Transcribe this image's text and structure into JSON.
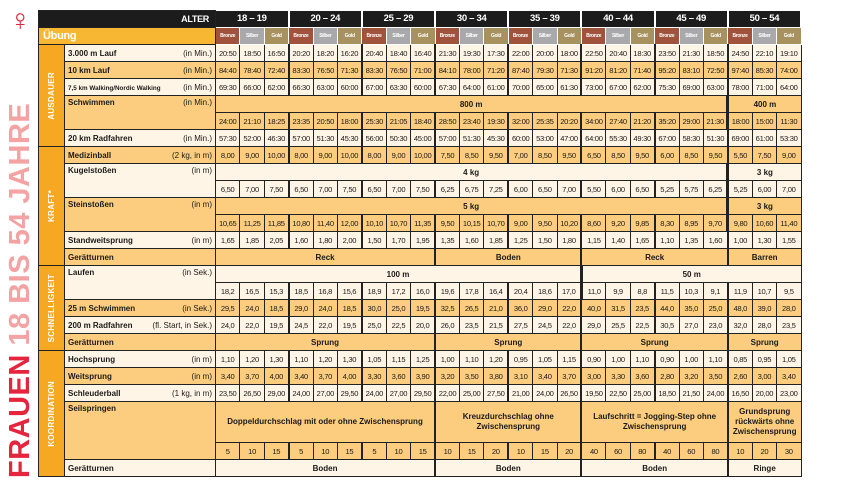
{
  "title": {
    "part1": "FRAUEN",
    "part2": "18 BIS 54 JAHRE",
    "symbol": "♀",
    "colors": {
      "red": "#e4253d",
      "pink": "#f3a3a3"
    }
  },
  "header": {
    "alter_label": "ALTER",
    "uebung_label": "Übung",
    "age_groups": [
      "18 – 19",
      "20 – 24",
      "25 – 29",
      "30 – 34",
      "35 – 39",
      "40 – 44",
      "45 – 49",
      "50 – 54"
    ],
    "medals": [
      {
        "label": "Bronze",
        "color": "#a0523c"
      },
      {
        "label": "Silber",
        "color": "#a9a9ab"
      },
      {
        "label": "Gold",
        "color": "#a7915f"
      }
    ]
  },
  "colors": {
    "orange": "#fccd7e",
    "cream": "#fff5e6",
    "category": "#f7a823",
    "header": "#1c1c1c"
  },
  "sections": [
    {
      "category": "AUSDAUER",
      "rows": [
        {
          "label": "3.000 m Lauf",
          "unit": "(in Min.)",
          "bg": "c",
          "values": [
            "20:50",
            "18:50",
            "16:50",
            "20:20",
            "18:20",
            "16:20",
            "20:40",
            "18:40",
            "16:40",
            "21:30",
            "19:30",
            "17:30",
            "22:00",
            "20:00",
            "18:00",
            "22:50",
            "20:40",
            "18:30",
            "23:50",
            "21:30",
            "18:50",
            "24:50",
            "22:10",
            "19:10"
          ]
        },
        {
          "label": "10 km Lauf",
          "unit": "(in Min.)",
          "bg": "o",
          "values": [
            "84:40",
            "78:40",
            "72:40",
            "83:30",
            "76:50",
            "71:30",
            "83:30",
            "76:50",
            "71:00",
            "84:10",
            "78:00",
            "71:20",
            "87:40",
            "79:30",
            "71:30",
            "91:20",
            "81:20",
            "71:40",
            "95:20",
            "83:10",
            "72:50",
            "97:40",
            "85:30",
            "74:00"
          ]
        },
        {
          "label": "7,5 km Walking/Nordic Walking",
          "unit": "(in Min.)",
          "bg": "c",
          "small": true,
          "values": [
            "69:30",
            "66:00",
            "62:00",
            "66:30",
            "63:00",
            "60:00",
            "67:00",
            "63:30",
            "60:00",
            "67:30",
            "64:00",
            "61:00",
            "70:00",
            "65:00",
            "61:30",
            "73:00",
            "67:00",
            "62:00",
            "75:30",
            "69:00",
            "63:00",
            "78:00",
            "71:00",
            "64:00"
          ]
        },
        {
          "label": "Schwimmen",
          "unit": "(in Min.)",
          "bg": "o",
          "spanbg": "o",
          "spans": [
            {
              "text": "800 m",
              "cols": 21
            },
            {
              "text": "400 m",
              "cols": 3
            }
          ],
          "values": [
            "24:00",
            "21:10",
            "18:25",
            "23:35",
            "20:50",
            "18:00",
            "25:30",
            "21:05",
            "18:40",
            "28:50",
            "23:40",
            "19:30",
            "32:00",
            "25:35",
            "20:20",
            "34:00",
            "27:40",
            "21:20",
            "35:20",
            "29:00",
            "21:30",
            "18:00",
            "15:00",
            "11:30"
          ]
        },
        {
          "label": "20 km Radfahren",
          "unit": "(in Min.)",
          "bg": "c",
          "values": [
            "57:30",
            "52:00",
            "46:30",
            "57:00",
            "51:30",
            "45:30",
            "56:00",
            "50:30",
            "45:00",
            "57:00",
            "51:30",
            "45:30",
            "60:00",
            "53:00",
            "47:00",
            "64:00",
            "55:30",
            "49:30",
            "67:00",
            "58:30",
            "51:30",
            "69:00",
            "61:00",
            "53:30"
          ]
        }
      ]
    },
    {
      "category": "KRAFT*",
      "rows": [
        {
          "label": "Medizinball",
          "unit": "(2 kg, in m)",
          "bg": "o",
          "values": [
            "8,00",
            "9,00",
            "10,00",
            "8,00",
            "9,00",
            "10,00",
            "8,00",
            "9,00",
            "10,00",
            "7,50",
            "8,50",
            "9,50",
            "7,00",
            "8,50",
            "9,50",
            "6,50",
            "8,50",
            "9,50",
            "6,00",
            "8,50",
            "9,50",
            "5,50",
            "7,50",
            "9,00"
          ]
        },
        {
          "label": "Kugelstoßen",
          "unit": "(in m)",
          "bg": "c",
          "spanbg": "c",
          "spans": [
            {
              "text": "4 kg",
              "cols": 21
            },
            {
              "text": "3 kg",
              "cols": 3
            }
          ],
          "values": [
            "6,50",
            "7,00",
            "7,50",
            "6,50",
            "7,00",
            "7,50",
            "6,50",
            "7,00",
            "7,50",
            "6,25",
            "6,75",
            "7,25",
            "6,00",
            "6,50",
            "7,00",
            "5,50",
            "6,00",
            "6,50",
            "5,25",
            "5,75",
            "6,25",
            "5,25",
            "6,00",
            "7,00"
          ]
        },
        {
          "label": "Steinstoßen",
          "unit": "(in m)",
          "bg": "o",
          "spanbg": "o",
          "spans": [
            {
              "text": "5 kg",
              "cols": 21
            },
            {
              "text": "3 kg",
              "cols": 3
            }
          ],
          "values": [
            "10,65",
            "11,25",
            "11,85",
            "10,80",
            "11,40",
            "12,00",
            "10,10",
            "10,70",
            "11,35",
            "9,50",
            "10,15",
            "10,70",
            "9,00",
            "9,50",
            "10,20",
            "8,60",
            "9,20",
            "9,85",
            "8,30",
            "8,95",
            "9,70",
            "9,80",
            "10,60",
            "11,40"
          ]
        },
        {
          "label": "Standweitsprung",
          "unit": "(in m)",
          "bg": "c",
          "values": [
            "1,65",
            "1,85",
            "2,05",
            "1,60",
            "1,80",
            "2,00",
            "1,50",
            "1,70",
            "1,95",
            "1,35",
            "1,60",
            "1,85",
            "1,25",
            "1,50",
            "1,80",
            "1,15",
            "1,40",
            "1,65",
            "1,10",
            "1,35",
            "1,60",
            "1,00",
            "1,30",
            "1,55"
          ]
        },
        {
          "label": "Gerätturnen",
          "unit": "",
          "bg": "o",
          "spanbg": "o",
          "spans": [
            {
              "text": "Reck",
              "cols": 9
            },
            {
              "text": "Boden",
              "cols": 6
            },
            {
              "text": "Reck",
              "cols": 6
            },
            {
              "text": "Barren",
              "cols": 3
            }
          ]
        }
      ]
    },
    {
      "category": "SCHNELLIGKEIT",
      "rows": [
        {
          "label": "Laufen",
          "unit": "(in Sek.)",
          "bg": "c",
          "spanbg": "c",
          "spans": [
            {
              "text": "100 m",
              "cols": 15
            },
            {
              "text": "50 m",
              "cols": 9
            }
          ],
          "values": [
            "18,2",
            "16,5",
            "15,3",
            "18,5",
            "16,8",
            "15,6",
            "18,9",
            "17,2",
            "16,0",
            "19,6",
            "17,8",
            "16,4",
            "20,4",
            "18,6",
            "17,0",
            "11,0",
            "9,9",
            "8,8",
            "11,5",
            "10,3",
            "9,1",
            "11,9",
            "10,7",
            "9,5"
          ]
        },
        {
          "label": "25 m Schwimmen",
          "unit": "(in Sek.)",
          "bg": "o",
          "values": [
            "29,5",
            "24,0",
            "18,5",
            "29,0",
            "24,0",
            "18,5",
            "30,0",
            "25,0",
            "19,5",
            "32,5",
            "26,5",
            "21,0",
            "36,0",
            "29,0",
            "22,0",
            "40,0",
            "31,5",
            "23,5",
            "44,0",
            "35,0",
            "25,0",
            "48,0",
            "39,0",
            "28,0"
          ]
        },
        {
          "label": "200 m Radfahren",
          "unit": "(fl. Start, in Sek.)",
          "bg": "c",
          "values": [
            "24,0",
            "22,0",
            "19,5",
            "24,5",
            "22,0",
            "19,5",
            "25,0",
            "22,5",
            "20,0",
            "26,0",
            "23,5",
            "21,5",
            "27,5",
            "24,5",
            "22,0",
            "29,0",
            "25,5",
            "22,5",
            "30,5",
            "27,0",
            "23,0",
            "32,0",
            "28,0",
            "23,5"
          ]
        },
        {
          "label": "Gerätturnen",
          "unit": "",
          "bg": "o",
          "spanbg": "o",
          "spans": [
            {
              "text": "Sprung",
              "cols": 9
            },
            {
              "text": "Sprung",
              "cols": 6
            },
            {
              "text": "Sprung",
              "cols": 6
            },
            {
              "text": "Sprung",
              "cols": 3
            }
          ]
        }
      ]
    },
    {
      "category": "KOORDINATION",
      "rows": [
        {
          "label": "Hochsprung",
          "unit": "(in m)",
          "bg": "c",
          "values": [
            "1,10",
            "1,20",
            "1,30",
            "1,10",
            "1,20",
            "1,30",
            "1,05",
            "1,15",
            "1,25",
            "1,00",
            "1,10",
            "1,20",
            "0,95",
            "1,05",
            "1,15",
            "0,90",
            "1,00",
            "1,10",
            "0,90",
            "1,00",
            "1,10",
            "0,85",
            "0,95",
            "1,05"
          ]
        },
        {
          "label": "Weitsprung",
          "unit": "(in m)",
          "bg": "o",
          "values": [
            "3,40",
            "3,70",
            "4,00",
            "3,40",
            "3,70",
            "4,00",
            "3,30",
            "3,60",
            "3,90",
            "3,20",
            "3,50",
            "3,80",
            "3,10",
            "3,40",
            "3,70",
            "3,00",
            "3,30",
            "3,60",
            "2,80",
            "3,20",
            "3,50",
            "2,60",
            "3,00",
            "3,40"
          ]
        },
        {
          "label": "Schleuderball",
          "unit": "(1 kg, in m)",
          "bg": "c",
          "values": [
            "23,50",
            "26,50",
            "29,00",
            "24,00",
            "27,00",
            "29,50",
            "24,00",
            "27,00",
            "29,50",
            "22,00",
            "25,00",
            "27,50",
            "21,00",
            "24,00",
            "26,50",
            "19,50",
            "22,50",
            "25,00",
            "18,50",
            "21,50",
            "24,00",
            "16,50",
            "20,00",
            "23,00"
          ]
        },
        {
          "label": "Seilspringen",
          "unit": "",
          "bg": "o",
          "spanbg": "o",
          "tall": true,
          "spans": [
            {
              "text": "Doppeldurchschlag mit oder ohne Zwischensprung",
              "cols": 9
            },
            {
              "text": "Kreuzdurchschlag ohne Zwischensprung",
              "cols": 6
            },
            {
              "text": "Laufschritt = Jogging-Step ohne Zwischensprung",
              "cols": 6
            },
            {
              "text": "Grundsprung rückwärts ohne Zwischensprung",
              "cols": 3
            }
          ],
          "values": [
            "5",
            "10",
            "15",
            "5",
            "10",
            "15",
            "5",
            "10",
            "15",
            "10",
            "15",
            "20",
            "10",
            "15",
            "20",
            "40",
            "60",
            "80",
            "40",
            "60",
            "80",
            "10",
            "20",
            "30"
          ]
        },
        {
          "label": "Gerätturnen",
          "unit": "",
          "bg": "c",
          "spanbg": "c",
          "spans": [
            {
              "text": "Boden",
              "cols": 9
            },
            {
              "text": "Boden",
              "cols": 6
            },
            {
              "text": "Boden",
              "cols": 6
            },
            {
              "text": "Ringe",
              "cols": 3
            }
          ]
        }
      ]
    }
  ]
}
